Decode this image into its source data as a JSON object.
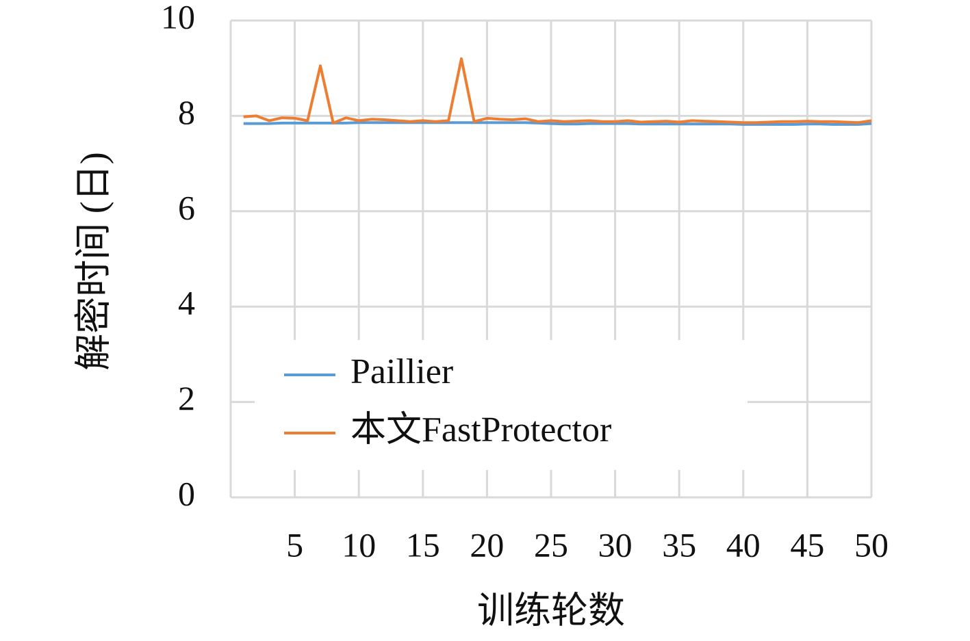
{
  "chart_data": {
    "type": "line",
    "x_label": "训练轮数",
    "y_label": "解密时间 (日)",
    "x": [
      1,
      2,
      3,
      4,
      5,
      6,
      7,
      8,
      9,
      10,
      11,
      12,
      13,
      14,
      15,
      16,
      17,
      18,
      19,
      20,
      21,
      22,
      23,
      24,
      25,
      26,
      27,
      28,
      29,
      30,
      31,
      32,
      33,
      34,
      35,
      36,
      37,
      38,
      39,
      40,
      41,
      42,
      43,
      44,
      45,
      46,
      47,
      48,
      49,
      50
    ],
    "xlim": [
      0,
      50
    ],
    "xticks": [
      5,
      10,
      15,
      20,
      25,
      30,
      35,
      40,
      45,
      50
    ],
    "ylim": [
      0,
      10
    ],
    "yticks": [
      0,
      2,
      4,
      6,
      8,
      10
    ],
    "grid": true,
    "series": [
      {
        "name": "Paillier",
        "color": "#5b9bd5",
        "values": [
          7.84,
          7.84,
          7.84,
          7.85,
          7.85,
          7.85,
          7.85,
          7.85,
          7.85,
          7.86,
          7.86,
          7.86,
          7.86,
          7.86,
          7.86,
          7.86,
          7.86,
          7.86,
          7.86,
          7.86,
          7.86,
          7.86,
          7.86,
          7.85,
          7.84,
          7.83,
          7.83,
          7.84,
          7.84,
          7.84,
          7.84,
          7.83,
          7.83,
          7.83,
          7.83,
          7.83,
          7.83,
          7.83,
          7.83,
          7.82,
          7.82,
          7.82,
          7.82,
          7.82,
          7.83,
          7.83,
          7.82,
          7.82,
          7.82,
          7.84
        ]
      },
      {
        "name": "本文FastProtector",
        "color": "#ed7d31",
        "values": [
          7.98,
          8.0,
          7.9,
          7.96,
          7.95,
          7.9,
          9.05,
          7.85,
          7.96,
          7.9,
          7.93,
          7.92,
          7.9,
          7.88,
          7.9,
          7.88,
          7.9,
          9.2,
          7.88,
          7.95,
          7.93,
          7.92,
          7.94,
          7.88,
          7.9,
          7.88,
          7.89,
          7.9,
          7.88,
          7.88,
          7.9,
          7.87,
          7.88,
          7.89,
          7.87,
          7.9,
          7.89,
          7.88,
          7.87,
          7.86,
          7.86,
          7.87,
          7.88,
          7.88,
          7.89,
          7.88,
          7.88,
          7.87,
          7.86,
          7.9
        ]
      }
    ]
  }
}
